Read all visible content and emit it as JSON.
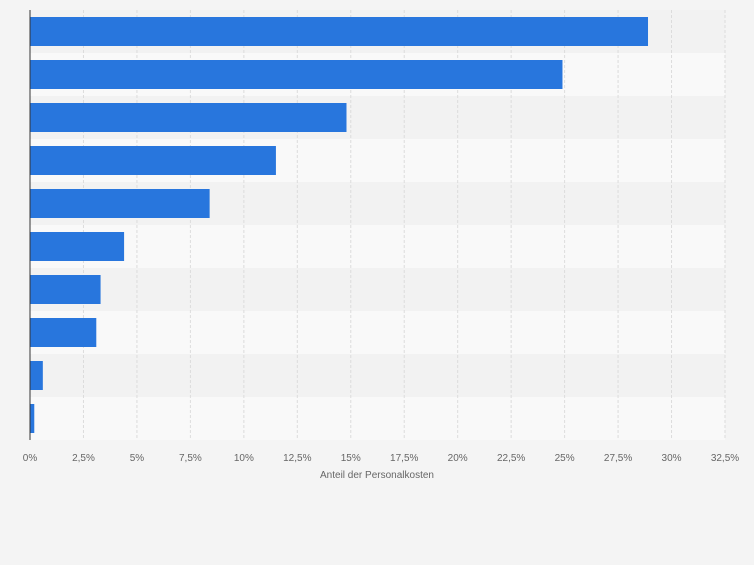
{
  "colors": {
    "page_background": "#f4f4f4",
    "band_dark": "#f2f2f2",
    "band_light": "#f9f9f9",
    "bar": "#2876dd",
    "grid": "#dcdcdc",
    "axis": "#333333",
    "tick_text": "#666666"
  },
  "chart_data": {
    "type": "bar",
    "orientation": "horizontal",
    "categories": [
      "",
      "",
      "",
      "",
      "",
      "",
      "",
      "",
      "",
      ""
    ],
    "values": [
      28.9,
      24.9,
      14.8,
      11.5,
      8.4,
      4.4,
      3.3,
      3.1,
      0.6,
      0.2
    ],
    "xlabel": "Anteil der Personalkosten",
    "xlim": [
      0,
      32.5
    ],
    "xticks": [
      0,
      2.5,
      5,
      7.5,
      10,
      12.5,
      15,
      17.5,
      20,
      22.5,
      25,
      27.5,
      30,
      32.5
    ],
    "xtick_labels": [
      "0%",
      "2,5%",
      "5%",
      "7,5%",
      "10%",
      "12,5%",
      "15%",
      "17,5%",
      "20%",
      "22,5%",
      "25%",
      "27,5%",
      "30%",
      "32,5%"
    ],
    "grid": true,
    "legend": "none"
  }
}
